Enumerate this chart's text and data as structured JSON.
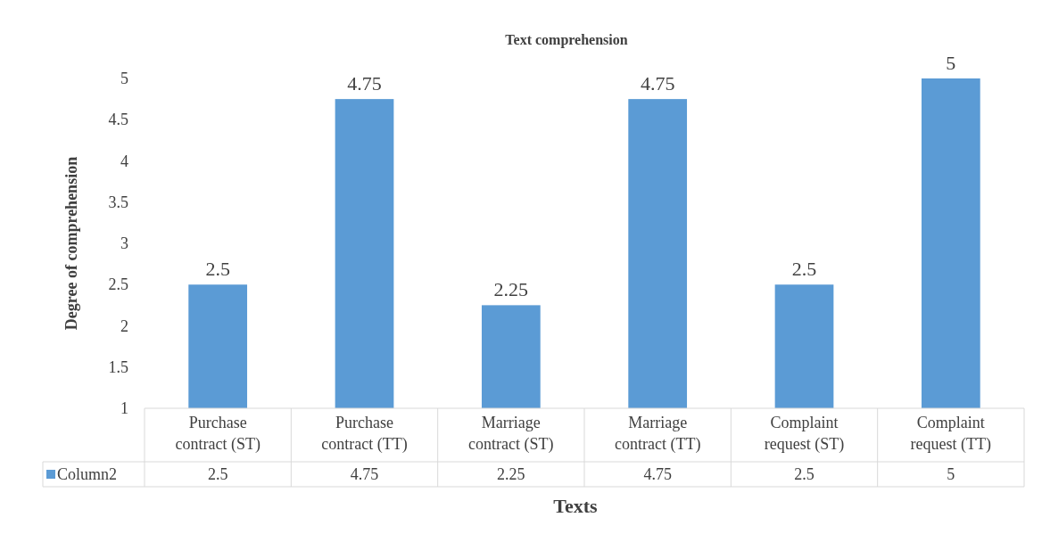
{
  "chart_data": {
    "type": "bar",
    "title": "Text comprehension",
    "xlabel": "Texts",
    "ylabel": "Degree of comprehension",
    "categories": [
      "Purchase contract (ST)",
      "Purchase contract (TT)",
      "Marriage contract (ST)",
      "Marriage contract (TT)",
      "Complaint request (ST)",
      "Complaint request (TT)"
    ],
    "series": [
      {
        "name": "Column2",
        "color": "#5b9bd5",
        "values": [
          2.5,
          4.75,
          2.25,
          4.75,
          2.5,
          5
        ],
        "value_labels": [
          "2.5",
          "4.75",
          "2.25",
          "4.75",
          "2.5",
          "5"
        ]
      }
    ],
    "ylim": [
      1,
      5
    ],
    "yticks": [
      1,
      1.5,
      2,
      2.5,
      3,
      3.5,
      4,
      4.5,
      5
    ],
    "annotations": [
      "2.5",
      "4.75",
      "2.25",
      "4.75",
      "2.5",
      "5"
    ],
    "grid": false,
    "legend": "bottom"
  }
}
